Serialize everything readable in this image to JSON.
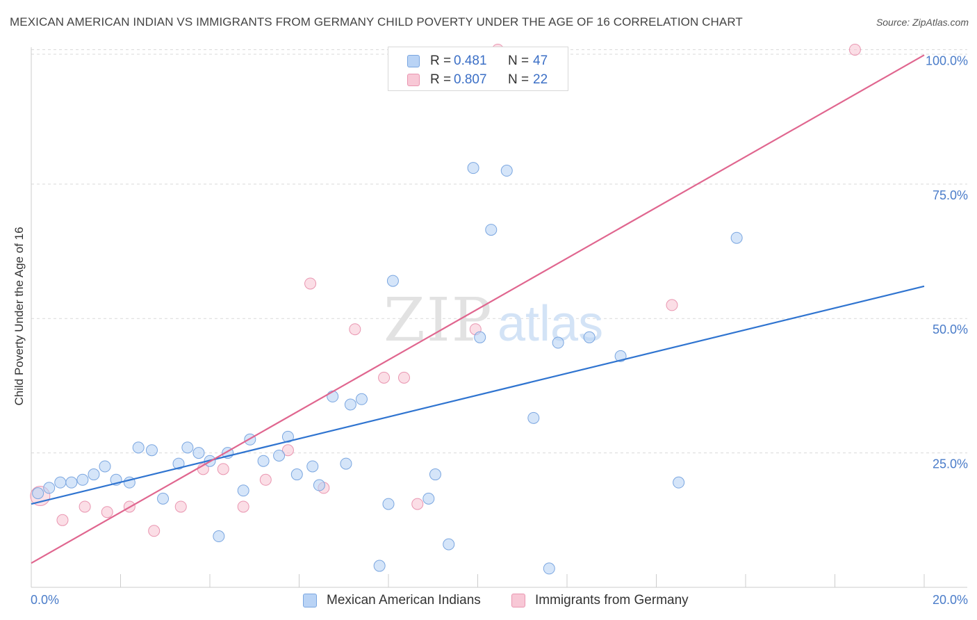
{
  "title": "MEXICAN AMERICAN INDIAN VS IMMIGRANTS FROM GERMANY CHILD POVERTY UNDER THE AGE OF 16 CORRELATION CHART",
  "source": "Source: ZipAtlas.com",
  "watermark": {
    "zip": "ZIP",
    "atlas": "atlas"
  },
  "legend_top": [
    {
      "r_label": "R =",
      "r_value": "0.481",
      "n_label": "N =",
      "n_value": "47"
    },
    {
      "r_label": "R =",
      "r_value": "0.807",
      "n_label": "N =",
      "n_value": "22"
    }
  ],
  "colors": {
    "blue_fill": "#b9d3f5",
    "blue_stroke": "#7aa6e0",
    "blue_line": "#2f74d0",
    "pink_fill": "#f8c8d6",
    "pink_stroke": "#e995b0",
    "pink_line": "#e0668f",
    "tick_text": "#4a7cc9",
    "grid": "#d9d9d9"
  },
  "chart_data": {
    "type": "scatter",
    "title": "MEXICAN AMERICAN INDIAN VS IMMIGRANTS FROM GERMANY CHILD POVERTY UNDER THE AGE OF 16 CORRELATION CHART",
    "xlabel": "",
    "ylabel": "Child Poverty Under the Age of 16",
    "xlim": [
      0,
      20
    ],
    "ylim": [
      0,
      102
    ],
    "x_tick_labels": [
      "0.0%",
      "20.0%"
    ],
    "y_ticks": [
      25,
      50,
      75,
      100
    ],
    "y_tick_labels": [
      "25.0%",
      "50.0%",
      "75.0%",
      "100.0%"
    ],
    "legend_position": "bottom",
    "series": [
      {
        "name": "Mexican American Indians",
        "color": "blue",
        "regression": {
          "x": [
            0,
            20
          ],
          "y": [
            15.5,
            56
          ]
        },
        "points": [
          [
            0.15,
            17.5
          ],
          [
            0.4,
            18.5
          ],
          [
            0.65,
            19.5
          ],
          [
            0.9,
            19.5
          ],
          [
            1.15,
            20
          ],
          [
            1.4,
            21
          ],
          [
            1.65,
            22.5
          ],
          [
            1.9,
            20
          ],
          [
            2.2,
            19.5
          ],
          [
            2.4,
            26
          ],
          [
            2.7,
            25.5
          ],
          [
            2.95,
            16.5
          ],
          [
            3.3,
            23
          ],
          [
            3.5,
            26
          ],
          [
            3.75,
            25
          ],
          [
            4.0,
            23.5
          ],
          [
            4.2,
            9.5
          ],
          [
            4.4,
            25
          ],
          [
            4.75,
            18
          ],
          [
            4.9,
            27.5
          ],
          [
            5.2,
            23.5
          ],
          [
            5.55,
            24.5
          ],
          [
            5.75,
            28
          ],
          [
            5.95,
            21
          ],
          [
            6.3,
            22.5
          ],
          [
            6.45,
            19
          ],
          [
            6.75,
            35.5
          ],
          [
            7.05,
            23
          ],
          [
            7.15,
            34
          ],
          [
            7.4,
            35
          ],
          [
            7.8,
            4
          ],
          [
            8.0,
            15.5
          ],
          [
            8.1,
            57
          ],
          [
            8.9,
            16.5
          ],
          [
            9.05,
            21
          ],
          [
            9.35,
            8
          ],
          [
            9.9,
            78
          ],
          [
            10.05,
            46.5
          ],
          [
            10.3,
            66.5
          ],
          [
            10.65,
            77.5
          ],
          [
            11.25,
            31.5
          ],
          [
            11.6,
            3.5
          ],
          [
            11.8,
            45.5
          ],
          [
            12.5,
            46.5
          ],
          [
            13.2,
            43
          ],
          [
            14.5,
            19.5
          ],
          [
            15.8,
            65
          ]
        ]
      },
      {
        "name": "Immigrants from Germany",
        "color": "pink",
        "regression": {
          "x": [
            0,
            20
          ],
          "y": [
            4.5,
            99
          ]
        },
        "points": [
          [
            0.2,
            17
          ],
          [
            0.7,
            12.5
          ],
          [
            1.2,
            15
          ],
          [
            1.7,
            14
          ],
          [
            2.2,
            15
          ],
          [
            2.75,
            10.5
          ],
          [
            3.35,
            15
          ],
          [
            3.85,
            22
          ],
          [
            4.3,
            22
          ],
          [
            4.75,
            15
          ],
          [
            5.25,
            20
          ],
          [
            5.75,
            25.5
          ],
          [
            6.25,
            56.5
          ],
          [
            6.55,
            18.5
          ],
          [
            7.25,
            48
          ],
          [
            7.9,
            39
          ],
          [
            8.35,
            39
          ],
          [
            8.65,
            15.5
          ],
          [
            9.95,
            48
          ],
          [
            10.45,
            100
          ],
          [
            14.35,
            52.5
          ],
          [
            18.45,
            100
          ]
        ]
      }
    ]
  },
  "legend_bottom": [
    {
      "label": "Mexican American Indians"
    },
    {
      "label": "Immigrants from Germany"
    }
  ]
}
